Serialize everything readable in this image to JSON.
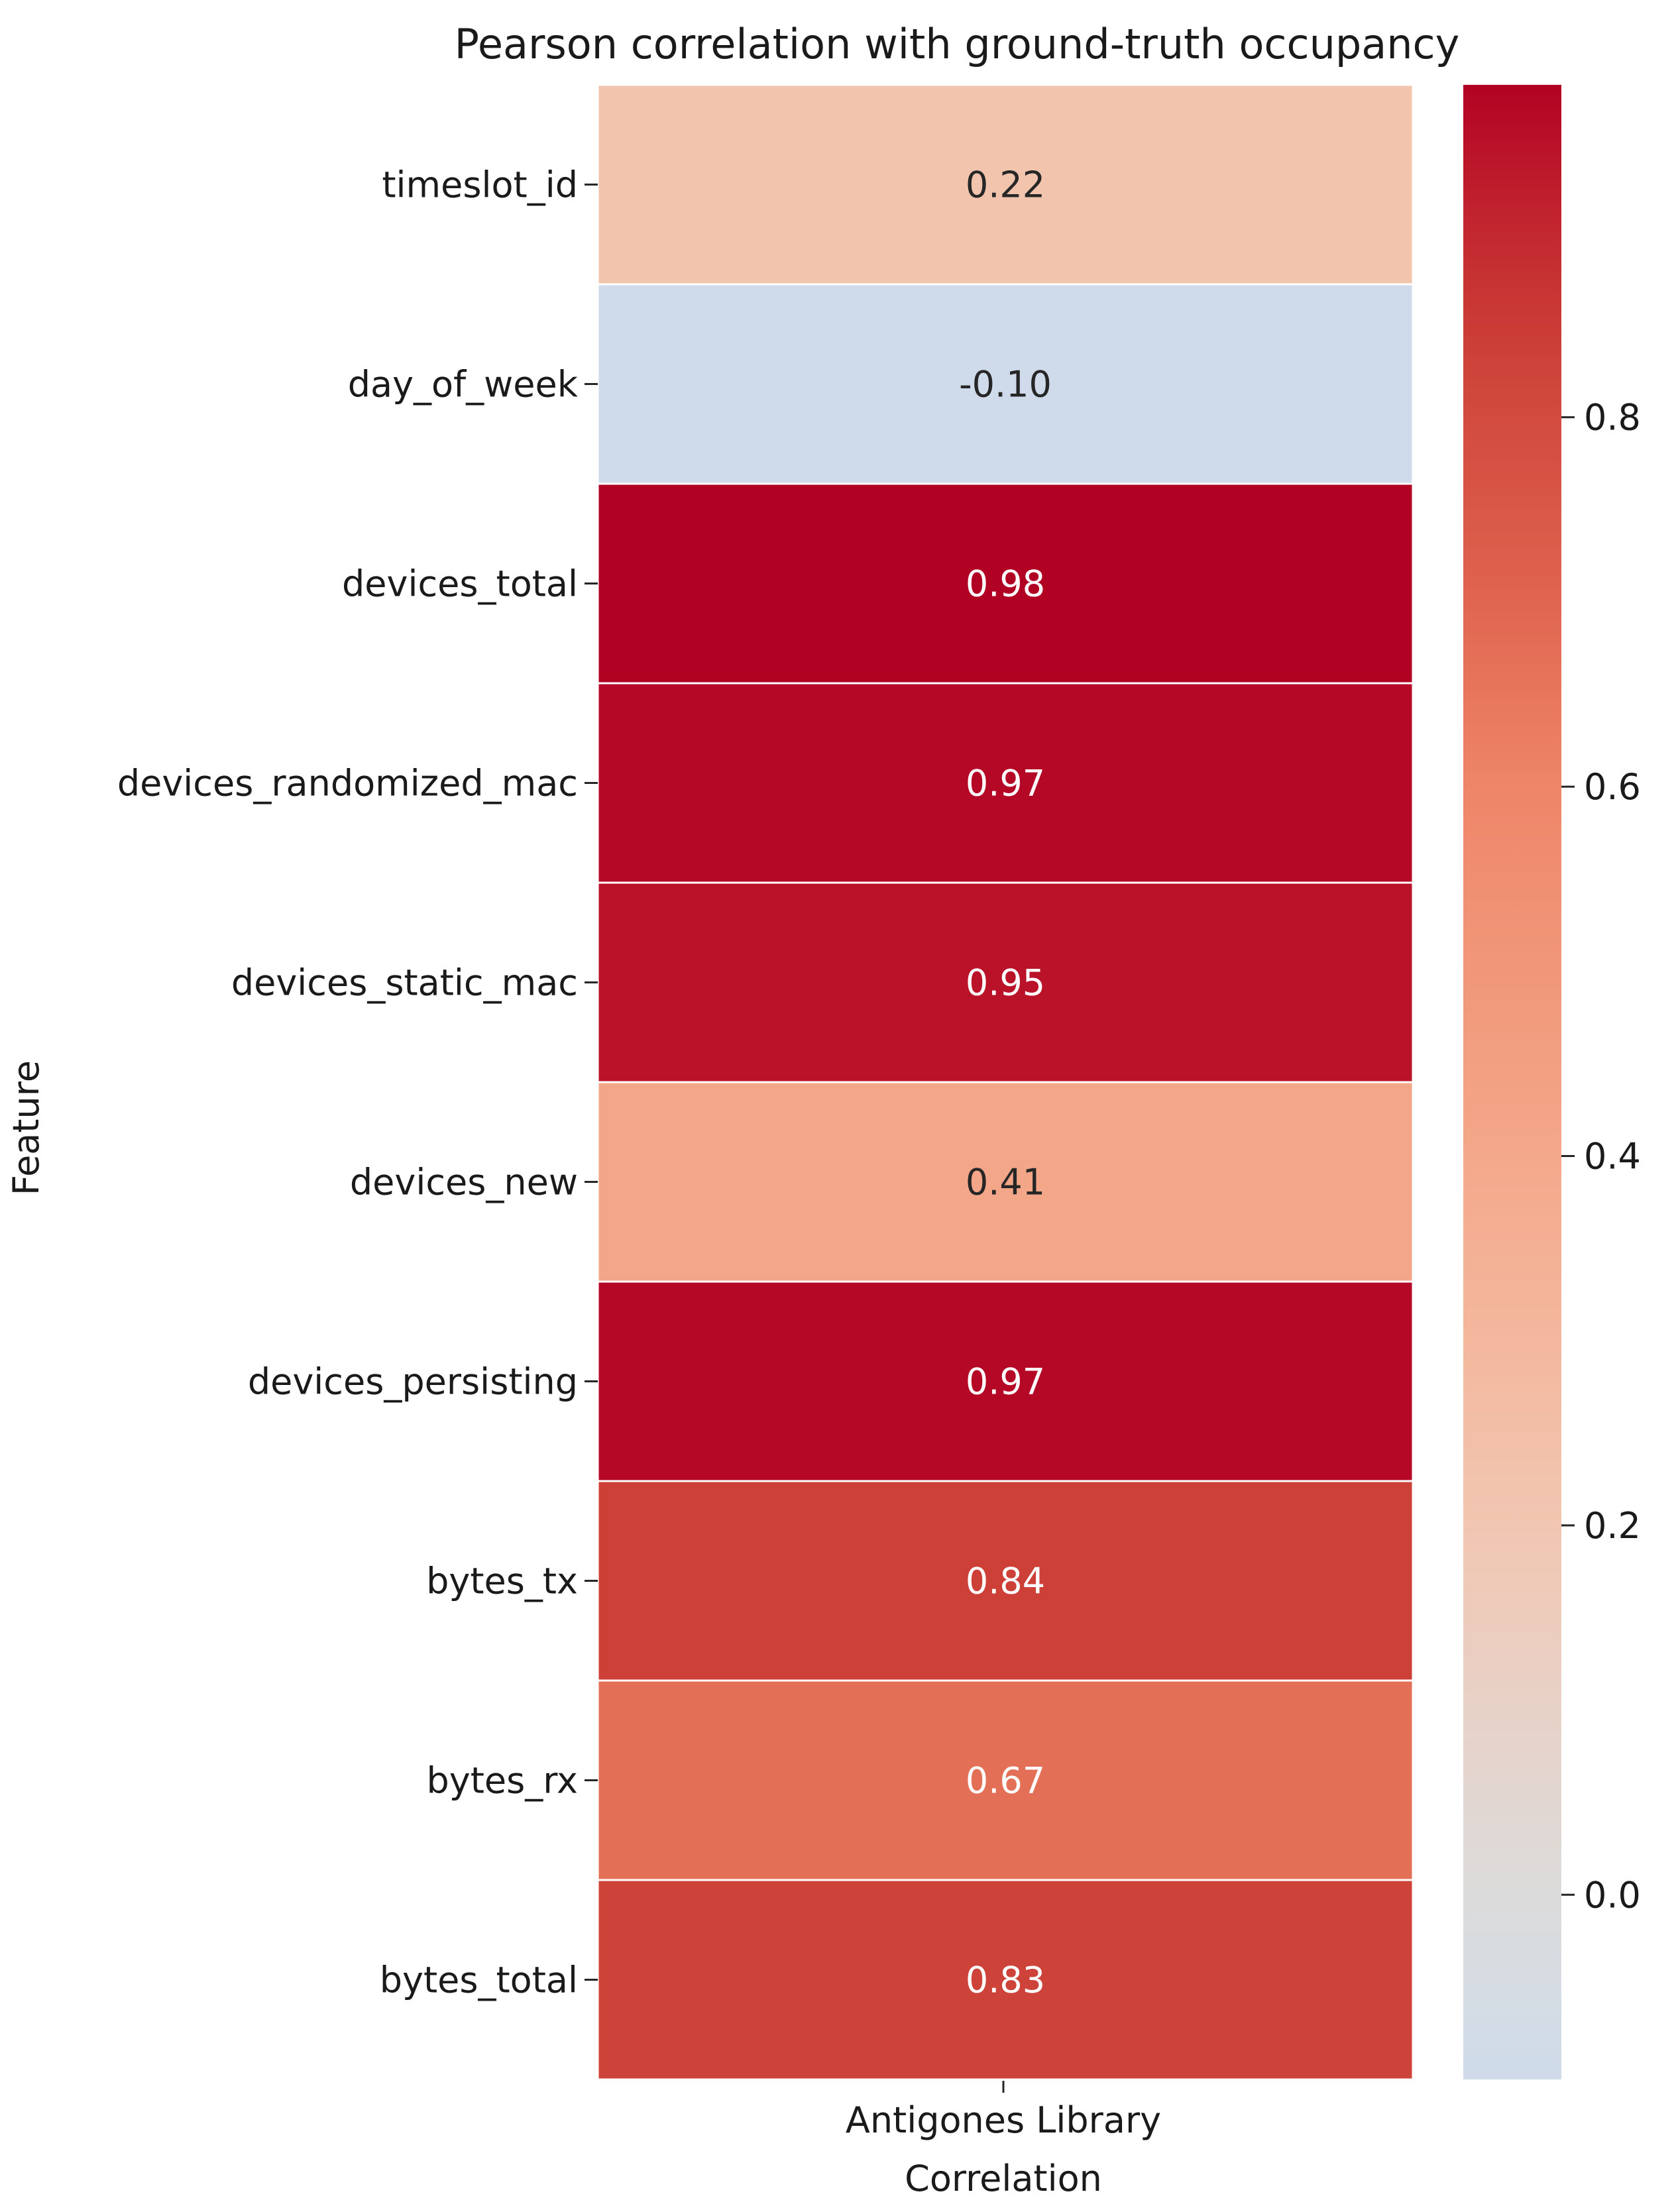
{
  "chart_data": {
    "type": "heatmap",
    "title": "Pearson correlation with ground-truth occupancy",
    "ylabel": "Feature",
    "xlabel": "Correlation",
    "columns": [
      "Antigones Library"
    ],
    "rows": [
      "timeslot_id",
      "day_of_week",
      "devices_total",
      "devices_randomized_mac",
      "devices_static_mac",
      "devices_new",
      "devices_persisting",
      "bytes_tx",
      "bytes_rx",
      "bytes_total"
    ],
    "values": [
      0.22,
      -0.1,
      0.98,
      0.97,
      0.95,
      0.41,
      0.97,
      0.84,
      0.67,
      0.83
    ],
    "value_labels": [
      "0.22",
      "-0.10",
      "0.98",
      "0.97",
      "0.95",
      "0.41",
      "0.97",
      "0.84",
      "0.67",
      "0.83"
    ],
    "colormap": "coolwarm-like (blue to red), centered at 0",
    "colorbar": {
      "vmin": -0.1,
      "vmax": 0.98,
      "ticks": [
        0.0,
        0.2,
        0.4,
        0.6,
        0.8
      ],
      "tick_labels": [
        "0.0",
        "0.2",
        "0.4",
        "0.6",
        "0.8"
      ]
    },
    "colors": {
      "text_dark": "#262626",
      "text_light": "#ffffff",
      "cell_border": "#ffffff"
    }
  }
}
